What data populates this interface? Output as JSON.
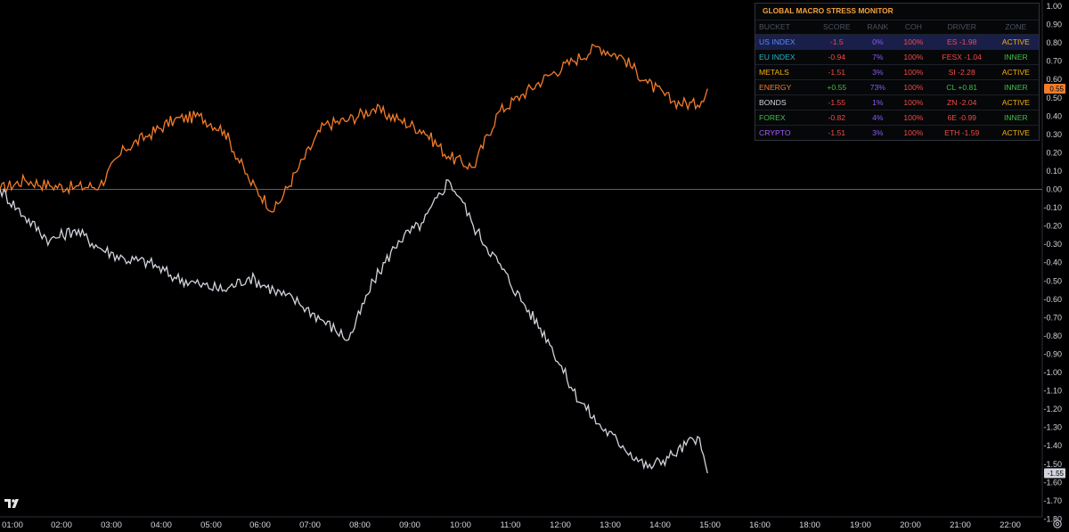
{
  "chart_data": {
    "type": "line",
    "title": "",
    "xlabel": "",
    "ylabel": "",
    "ylim": [
      -1.8,
      1.0
    ],
    "yticks": [
      "1.00",
      "0.90",
      "0.80",
      "0.70",
      "0.60",
      "0.50",
      "0.40",
      "0.30",
      "0.20",
      "0.10",
      "0.00",
      "-0.10",
      "-0.20",
      "-0.30",
      "-0.40",
      "-0.50",
      "-0.60",
      "-0.70",
      "-0.80",
      "-0.90",
      "-1.00",
      "-1.10",
      "-1.20",
      "-1.30",
      "-1.40",
      "-1.50",
      "-1.60",
      "-1.70",
      "-1.80"
    ],
    "xticks": [
      "01:00",
      "02:00",
      "03:00",
      "04:00",
      "05:00",
      "06:00",
      "07:00",
      "08:00",
      "09:00",
      "10:00",
      "11:00",
      "12:00",
      "13:00",
      "14:00",
      "15:00",
      "16:00",
      "18:00",
      "19:00",
      "20:00",
      "21:00",
      "22:00"
    ],
    "zero_line": 0,
    "series": [
      {
        "color": "#f57c2a",
        "last_value_label": "0.55",
        "x": [
          "01:00",
          "01:30",
          "02:00",
          "02:30",
          "03:00",
          "03:30",
          "04:00",
          "04:30",
          "05:00",
          "05:30",
          "06:00",
          "06:30",
          "07:00",
          "07:30",
          "08:00",
          "08:30",
          "09:00",
          "09:30",
          "10:00",
          "10:30",
          "11:00",
          "11:30",
          "12:00",
          "12:30",
          "13:00",
          "13:30",
          "14:00",
          "14:30",
          "15:00",
          "15:12"
        ],
        "values": [
          0.0,
          0.05,
          0.02,
          0.01,
          0.02,
          0.22,
          0.3,
          0.38,
          0.4,
          0.32,
          0.05,
          -0.12,
          0.12,
          0.35,
          0.38,
          0.44,
          0.38,
          0.32,
          0.18,
          0.12,
          0.42,
          0.52,
          0.62,
          0.7,
          0.78,
          0.72,
          0.58,
          0.48,
          0.46,
          0.55
        ]
      },
      {
        "color": "#d1d4dc",
        "last_value_label": "-1.55",
        "x": [
          "01:00",
          "01:30",
          "02:00",
          "02:30",
          "03:00",
          "03:30",
          "04:00",
          "04:30",
          "05:00",
          "05:30",
          "06:00",
          "06:30",
          "07:00",
          "07:30",
          "08:00",
          "08:30",
          "09:00",
          "09:30",
          "10:00",
          "10:15",
          "10:30",
          "11:00",
          "11:30",
          "12:00",
          "12:30",
          "13:00",
          "13:30",
          "14:00",
          "14:30",
          "15:00",
          "15:12"
        ],
        "values": [
          0.0,
          -0.15,
          -0.28,
          -0.22,
          -0.32,
          -0.38,
          -0.4,
          -0.48,
          -0.52,
          -0.55,
          -0.48,
          -0.55,
          -0.62,
          -0.72,
          -0.82,
          -0.5,
          -0.28,
          -0.18,
          0.05,
          -0.05,
          -0.2,
          -0.4,
          -0.62,
          -0.82,
          -1.1,
          -1.28,
          -1.4,
          -1.52,
          -1.45,
          -1.35,
          -1.55
        ]
      }
    ]
  },
  "monitor": {
    "title": "GLOBAL MACRO STRESS MONITOR",
    "headers": [
      "BUCKET",
      "SCORE",
      "RANK",
      "COH",
      "DRIVER",
      "ZONE"
    ],
    "rows": [
      {
        "bucket": "US INDEX",
        "score": "-1.5",
        "rank": "0%",
        "coh": "100%",
        "driver": "ES -1.98",
        "zone": "ACTIVE",
        "bucket_color": "#4f8cff",
        "score_color": "#ef4b4b",
        "driver_color": "#ef4b4b",
        "zone_color": "#f2b10c",
        "highlight": true
      },
      {
        "bucket": "EU INDEX",
        "score": "-0.94",
        "rank": "7%",
        "coh": "100%",
        "driver": "FESX -1.04",
        "zone": "INNER",
        "bucket_color": "#27b5c7",
        "score_color": "#ef4b4b",
        "driver_color": "#ef4b4b",
        "zone_color": "#3fbf4a",
        "highlight": false
      },
      {
        "bucket": "METALS",
        "score": "-1.51",
        "rank": "3%",
        "coh": "100%",
        "driver": "SI -2.28",
        "zone": "ACTIVE",
        "bucket_color": "#f2b10c",
        "score_color": "#ef4b4b",
        "driver_color": "#ef4b4b",
        "zone_color": "#f2b10c",
        "highlight": false
      },
      {
        "bucket": "ENERGY",
        "score": "+0.55",
        "rank": "73%",
        "coh": "100%",
        "driver": "CL +0.81",
        "zone": "INNER",
        "bucket_color": "#f57c2a",
        "score_color": "#3fbf4a",
        "driver_color": "#3fbf4a",
        "zone_color": "#3fbf4a",
        "highlight": false
      },
      {
        "bucket": "BONDS",
        "score": "-1.55",
        "rank": "1%",
        "coh": "100%",
        "driver": "ZN -2.04",
        "zone": "ACTIVE",
        "bucket_color": "#d1d4dc",
        "score_color": "#ef4b4b",
        "driver_color": "#ef4b4b",
        "zone_color": "#f2b10c",
        "highlight": false
      },
      {
        "bucket": "FOREX",
        "score": "-0.82",
        "rank": "4%",
        "coh": "100%",
        "driver": "6E -0.99",
        "zone": "INNER",
        "bucket_color": "#3fbf4a",
        "score_color": "#ef4b4b",
        "driver_color": "#ef4b4b",
        "zone_color": "#3fbf4a",
        "highlight": false
      },
      {
        "bucket": "CRYPTO",
        "score": "-1.51",
        "rank": "3%",
        "coh": "100%",
        "driver": "ETH -1.59",
        "zone": "ACTIVE",
        "bucket_color": "#a45cff",
        "score_color": "#ef4b4b",
        "driver_color": "#ef4b4b",
        "zone_color": "#f2b10c",
        "highlight": false
      }
    ],
    "rank_color": "#8a5cf6",
    "coh_color": "#ef4b4b"
  },
  "icons": {
    "logo": "tradingview-logo",
    "settings": "gear-icon"
  }
}
